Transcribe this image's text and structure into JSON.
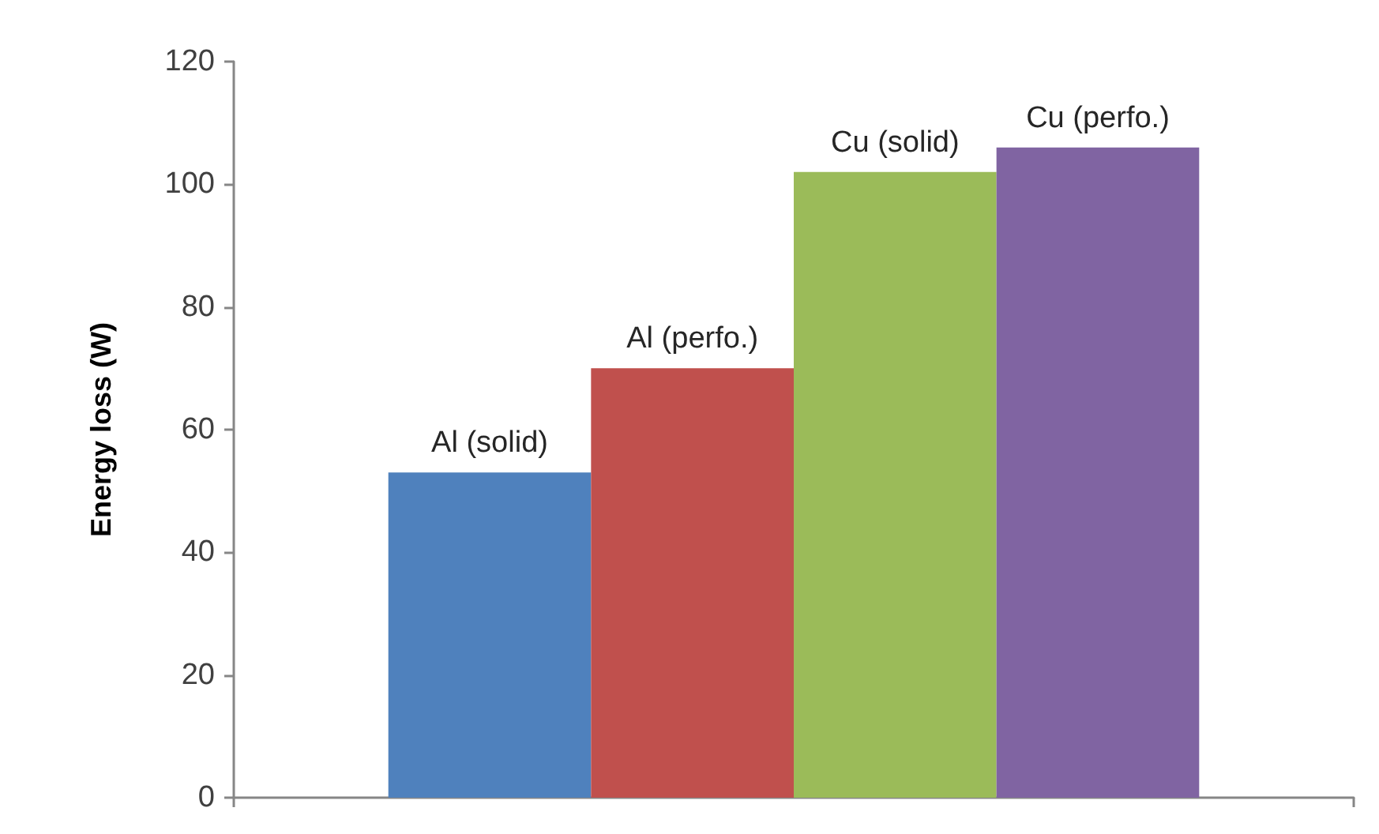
{
  "chart_data": {
    "type": "bar",
    "ylabel": "Energy loss (W)",
    "categories": [
      null
    ],
    "series": [
      {
        "name": "Al (solid)",
        "color": "#4f81bd",
        "values": [
          53
        ]
      },
      {
        "name": "Al (perfo.)",
        "color": "#c0504d",
        "values": [
          70
        ]
      },
      {
        "name": "Cu (solid)",
        "color": "#9bbb59",
        "values": [
          102
        ]
      },
      {
        "name": "Cu (perfo.)",
        "color": "#8064a2",
        "values": [
          106
        ]
      }
    ],
    "ylim": [
      0,
      120
    ],
    "yticks": [
      0,
      20,
      40,
      60,
      80,
      100,
      120
    ]
  }
}
